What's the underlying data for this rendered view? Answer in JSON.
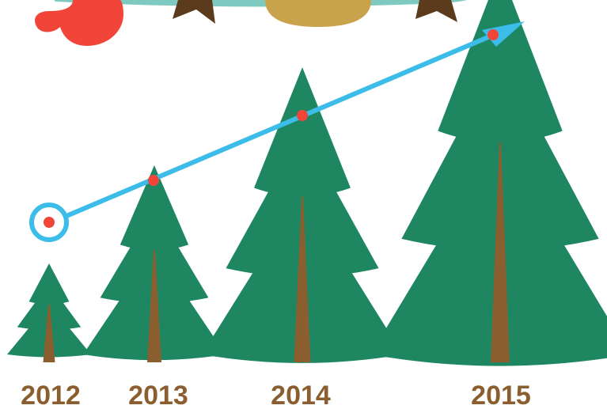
{
  "chart_data": {
    "type": "pictograph",
    "categories": [
      "2012",
      "2013",
      "2014",
      "2015"
    ],
    "series": [
      {
        "values": [
          1,
          2,
          3,
          4
        ]
      }
    ],
    "title": "",
    "xlabel": "",
    "ylabel": "",
    "ylim": [
      0,
      4
    ],
    "trend_arrow": true,
    "grid": false,
    "legend": "none"
  },
  "colors": {
    "tree": "#1e8762",
    "trunk": "#8a5e2e",
    "arrow": "#3cbde9",
    "marker": "#f2453a",
    "label": "#8a5e2e",
    "mitten": "#f2453a",
    "garland": "#7fcac0",
    "ornament": "#c9a24c",
    "ribbon": "#5c3b1c"
  },
  "icons": {
    "tree": "pine-tree-icon",
    "mitten": "mitten-icon",
    "ornament": "ornament-icon",
    "ribbon": "ribbon-icon"
  }
}
